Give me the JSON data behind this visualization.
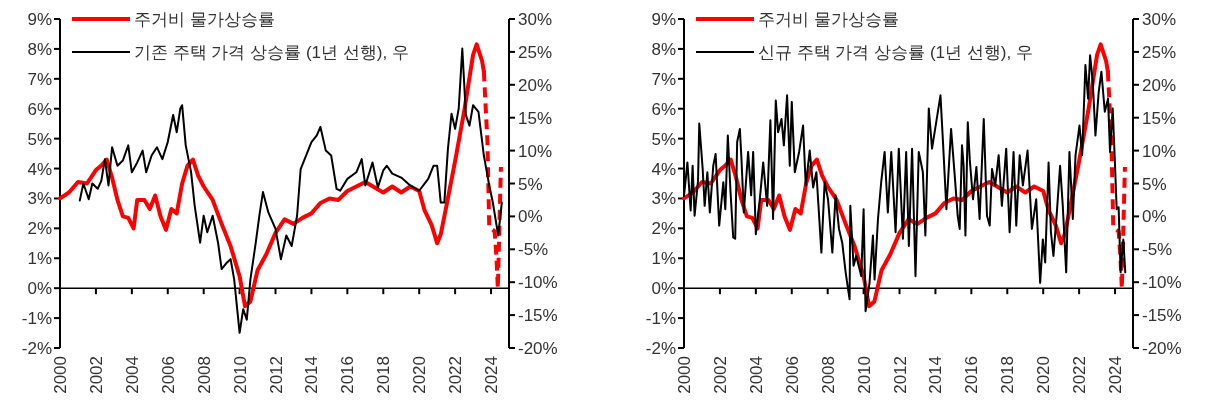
{
  "chart_data": [
    {
      "type": "line",
      "xlim": [
        2000,
        2025
      ],
      "xticks": [
        2000,
        2002,
        2004,
        2006,
        2008,
        2010,
        2012,
        2014,
        2016,
        2018,
        2020,
        2022,
        2024
      ],
      "ylim": [
        -2,
        9
      ],
      "yticks": [
        {
          "value": -2,
          "label": "-2%"
        },
        {
          "value": -1,
          "label": "-1%"
        },
        {
          "value": 0,
          "label": "0%"
        },
        {
          "value": 1,
          "label": "1%"
        },
        {
          "value": 2,
          "label": "2%"
        },
        {
          "value": 3,
          "label": "3%"
        },
        {
          "value": 4,
          "label": "4%"
        },
        {
          "value": 5,
          "label": "5%"
        },
        {
          "value": 6,
          "label": "6%"
        },
        {
          "value": 7,
          "label": "7%"
        },
        {
          "value": 8,
          "label": "8%"
        },
        {
          "value": 9,
          "label": "9%"
        }
      ],
      "y2lim": [
        -20,
        30
      ],
      "y2ticks": [
        {
          "value": -20,
          "label": "-20%"
        },
        {
          "value": -15,
          "label": "-15%"
        },
        {
          "value": -10,
          "label": "-10%"
        },
        {
          "value": -5,
          "label": "-5%"
        },
        {
          "value": 0,
          "label": "0%"
        },
        {
          "value": 5,
          "label": "5%"
        },
        {
          "value": 10,
          "label": "10%"
        },
        {
          "value": 15,
          "label": "15%"
        },
        {
          "value": 20,
          "label": "20%"
        },
        {
          "value": 25,
          "label": "25%"
        },
        {
          "value": 30,
          "label": "30%"
        }
      ],
      "legend": "top left",
      "series": [
        {
          "name": "주거비 물가상승률",
          "color": "#ff0000",
          "x": [
            2000.0,
            2000.5,
            2001.0,
            2001.5,
            2002.0,
            2002.3,
            2002.6,
            2002.9,
            2003.2,
            2003.5,
            2003.8,
            2004.1,
            2004.3,
            2004.7,
            2005.0,
            2005.3,
            2005.6,
            2005.9,
            2006.2,
            2006.5,
            2006.8,
            2007.1,
            2007.4,
            2007.7,
            2008.0,
            2008.5,
            2009.0,
            2009.5,
            2010.0,
            2010.3,
            2010.6,
            2011.0,
            2011.5,
            2012.0,
            2012.5,
            2013.0,
            2013.5,
            2014.0,
            2014.5,
            2015.0,
            2015.5,
            2016.0,
            2017.0,
            2018.0,
            2018.5,
            2019.0,
            2019.5,
            2020.0,
            2020.3,
            2020.7,
            2021.0,
            2021.2,
            2021.5,
            2022.0,
            2022.5,
            2023.0,
            2023.2,
            2023.5,
            2023.6
          ],
          "values": [
            3.0,
            3.2,
            3.55,
            3.5,
            3.95,
            4.1,
            4.3,
            3.7,
            2.95,
            2.4,
            2.35,
            2.0,
            2.95,
            2.95,
            2.65,
            3.1,
            2.4,
            1.95,
            2.65,
            2.5,
            3.5,
            4.1,
            4.3,
            3.75,
            3.4,
            2.95,
            2.15,
            1.4,
            0.4,
            -0.6,
            -0.45,
            0.6,
            1.15,
            1.85,
            2.3,
            2.15,
            2.35,
            2.5,
            2.85,
            3.0,
            2.95,
            3.25,
            3.55,
            3.2,
            3.4,
            3.2,
            3.4,
            3.25,
            2.6,
            2.1,
            1.5,
            1.8,
            2.7,
            4.25,
            5.9,
            7.8,
            8.15,
            7.6,
            7.25
          ]
        },
        {
          "color": "#ff0000",
          "line_style": "dashed",
          "x": [
            2023.6,
            2023.8,
            2023.9,
            2024.2,
            2024.3,
            2024.38,
            2024.55
          ],
          "values": [
            7.25,
            4.9,
            2.05,
            1.9,
            1.05,
            0.0,
            4.05
          ]
        },
        {
          "name": "기존 주택 가격 상승률 (1년 선행), 우",
          "color": "#000000",
          "axis": "y2",
          "x": [
            2001.1,
            2001.3,
            2001.6,
            2001.8,
            2002.1,
            2002.3,
            2002.5,
            2002.7,
            2002.9,
            2003.2,
            2003.5,
            2003.8,
            2004.0,
            2004.3,
            2004.6,
            2004.8,
            2005.1,
            2005.4,
            2005.7,
            2006.0,
            2006.3,
            2006.5,
            2006.7,
            2006.8,
            2007.0,
            2007.3,
            2007.5,
            2007.8,
            2008.0,
            2008.2,
            2008.5,
            2008.8,
            2009.0,
            2009.3,
            2009.5,
            2009.7,
            2010.0,
            2010.2,
            2010.4,
            2010.6,
            2010.9,
            2011.1,
            2011.3,
            2011.6,
            2012.0,
            2012.3,
            2012.6,
            2012.9,
            2013.2,
            2013.4,
            2013.7,
            2014.0,
            2014.3,
            2014.5,
            2014.8,
            2015.1,
            2015.4,
            2015.6,
            2016.0,
            2016.5,
            2016.8,
            2017.0,
            2017.4,
            2017.7,
            2018.0,
            2018.2,
            2018.5,
            2019.0,
            2019.5,
            2020.0,
            2020.5,
            2020.8,
            2021.0,
            2021.2,
            2021.4,
            2021.6,
            2021.8,
            2022.0,
            2022.2,
            2022.4,
            2022.6,
            2022.8,
            2023.0,
            2023.3,
            2023.6,
            2023.9,
            2024.1,
            2024.4,
            2024.6
          ],
          "values": [
            2.4,
            5.0,
            2.6,
            5.0,
            4.2,
            5.4,
            8.7,
            4.7,
            10.5,
            7.7,
            8.5,
            10.8,
            6.7,
            8.2,
            10.0,
            6.7,
            9.25,
            10.5,
            8.7,
            11.3,
            15.4,
            12.8,
            16.4,
            16.9,
            10.8,
            6.7,
            1.6,
            -4.0,
            0.1,
            -2.4,
            0.1,
            -4.0,
            -8.0,
            -7.0,
            -6.5,
            -9.6,
            -17.7,
            -14.1,
            -15.7,
            -9.6,
            -4.0,
            0.1,
            3.7,
            0.6,
            -1.9,
            -6.5,
            -2.9,
            -4.5,
            0.1,
            7.2,
            9.25,
            11.3,
            12.3,
            13.6,
            10.0,
            9.25,
            4.2,
            3.9,
            5.7,
            6.7,
            8.7,
            4.7,
            8.2,
            4.4,
            7.0,
            7.7,
            6.5,
            5.9,
            4.7,
            3.9,
            5.7,
            7.7,
            7.7,
            2.1,
            2.1,
            10.3,
            15.6,
            13.3,
            16.4,
            25.5,
            15.4,
            13.8,
            16.9,
            15.9,
            9.25,
            4.7,
            2.1,
            -2.9,
            2.1
          ]
        }
      ]
    },
    {
      "type": "line",
      "xlim": [
        2000,
        2025
      ],
      "xticks": [
        2000,
        2002,
        2004,
        2006,
        2008,
        2010,
        2012,
        2014,
        2016,
        2018,
        2020,
        2022,
        2024
      ],
      "ylim": [
        -2,
        9
      ],
      "yticks": [
        {
          "value": -2,
          "label": "-2%"
        },
        {
          "value": -1,
          "label": "-1%"
        },
        {
          "value": 0,
          "label": "0%"
        },
        {
          "value": 1,
          "label": "1%"
        },
        {
          "value": 2,
          "label": "2%"
        },
        {
          "value": 3,
          "label": "3%"
        },
        {
          "value": 4,
          "label": "4%"
        },
        {
          "value": 5,
          "label": "5%"
        },
        {
          "value": 6,
          "label": "6%"
        },
        {
          "value": 7,
          "label": "7%"
        },
        {
          "value": 8,
          "label": "8%"
        },
        {
          "value": 9,
          "label": "9%"
        }
      ],
      "y2lim": [
        -20,
        30
      ],
      "y2ticks": [
        {
          "value": -20,
          "label": "-20%"
        },
        {
          "value": -15,
          "label": "-15%"
        },
        {
          "value": -10,
          "label": "-10%"
        },
        {
          "value": -5,
          "label": "-5%"
        },
        {
          "value": 0,
          "label": "0%"
        },
        {
          "value": 5,
          "label": "5%"
        },
        {
          "value": 10,
          "label": "10%"
        },
        {
          "value": 15,
          "label": "15%"
        },
        {
          "value": 20,
          "label": "20%"
        },
        {
          "value": 25,
          "label": "25%"
        },
        {
          "value": 30,
          "label": "30%"
        }
      ],
      "legend": "top left",
      "series": [
        {
          "name": "주거비 물가상승률",
          "color": "#ff0000",
          "x": [
            2000.0,
            2000.5,
            2001.0,
            2001.5,
            2002.0,
            2002.3,
            2002.6,
            2002.9,
            2003.2,
            2003.5,
            2003.8,
            2004.1,
            2004.3,
            2004.7,
            2005.0,
            2005.3,
            2005.6,
            2005.9,
            2006.2,
            2006.5,
            2006.8,
            2007.1,
            2007.4,
            2007.7,
            2008.0,
            2008.5,
            2009.0,
            2009.5,
            2010.0,
            2010.3,
            2010.6,
            2011.0,
            2011.5,
            2012.0,
            2012.5,
            2013.0,
            2013.5,
            2014.0,
            2014.5,
            2015.0,
            2015.5,
            2016.0,
            2017.0,
            2018.0,
            2018.5,
            2019.0,
            2019.5,
            2020.0,
            2020.3,
            2020.7,
            2021.0,
            2021.2,
            2021.5,
            2022.0,
            2022.5,
            2023.0,
            2023.2,
            2023.5,
            2023.6
          ],
          "values": [
            3.0,
            3.2,
            3.55,
            3.5,
            3.95,
            4.1,
            4.3,
            3.7,
            2.95,
            2.4,
            2.35,
            2.0,
            2.95,
            2.95,
            2.65,
            3.1,
            2.4,
            1.95,
            2.65,
            2.5,
            3.5,
            4.1,
            4.3,
            3.75,
            3.4,
            2.95,
            2.15,
            1.4,
            0.4,
            -0.6,
            -0.45,
            0.6,
            1.15,
            1.85,
            2.3,
            2.15,
            2.35,
            2.5,
            2.85,
            3.0,
            2.95,
            3.25,
            3.55,
            3.2,
            3.4,
            3.2,
            3.4,
            3.25,
            2.6,
            2.1,
            1.5,
            1.8,
            2.7,
            4.25,
            5.9,
            7.8,
            8.15,
            7.6,
            7.25
          ]
        },
        {
          "color": "#ff0000",
          "line_style": "dashed",
          "x": [
            2023.6,
            2023.8,
            2023.9,
            2024.2,
            2024.3,
            2024.38,
            2024.55
          ],
          "values": [
            7.25,
            4.9,
            2.05,
            1.9,
            1.05,
            0.0,
            4.05
          ]
        },
        {
          "name": "신규 주택 가격 상승률 (1년 선행), 우",
          "color": "#000000",
          "axis": "y2",
          "x": [
            2000.0,
            2000.19,
            2000.37,
            2000.48,
            2000.59,
            2000.78,
            2000.85,
            2001.04,
            2001.15,
            2001.3,
            2001.44,
            2001.63,
            2001.76,
            2001.96,
            2002.19,
            2002.3,
            2002.44,
            2002.59,
            2002.74,
            2002.85,
            2002.96,
            2003.11,
            2003.2,
            2003.33,
            2003.57,
            2003.74,
            2003.85,
            2004.0,
            2004.22,
            2004.41,
            2004.63,
            2004.81,
            2004.96,
            2005.11,
            2005.24,
            2005.43,
            2005.56,
            2005.74,
            2005.89,
            2006.0,
            2006.17,
            2006.41,
            2006.63,
            2006.78,
            2007.0,
            2007.19,
            2007.37,
            2007.65,
            2007.83,
            2008.02,
            2008.26,
            2008.44,
            2008.63,
            2008.81,
            2009.0,
            2009.22,
            2009.26,
            2009.44,
            2009.59,
            2009.87,
            2010.0,
            2010.11,
            2010.33,
            2010.52,
            2010.61,
            2010.8,
            2010.98,
            2011.17,
            2011.35,
            2011.54,
            2011.78,
            2011.96,
            2012.19,
            2012.37,
            2012.52,
            2012.7,
            2012.89,
            2013.07,
            2013.3,
            2013.44,
            2013.63,
            2013.81,
            2014.28,
            2014.43,
            2014.61,
            2014.87,
            2015.06,
            2015.24,
            2015.35,
            2015.48,
            2015.57,
            2015.67,
            2015.8,
            2015.91,
            2016.09,
            2016.28,
            2016.46,
            2016.69,
            2016.87,
            2017.02,
            2017.15,
            2017.33,
            2017.52,
            2017.7,
            2017.94,
            2018.13,
            2018.35,
            2018.5,
            2018.69,
            2018.87,
            2019.13,
            2019.37,
            2019.61,
            2019.83,
            2019.98,
            2020.11,
            2020.3,
            2020.43,
            2020.57,
            2020.76,
            2020.94,
            2021.09,
            2021.28,
            2021.46,
            2021.65,
            2021.8,
            2022.02,
            2022.17,
            2022.35,
            2022.5,
            2022.61,
            2022.76,
            2022.91,
            2023.09,
            2023.24,
            2023.43,
            2023.61,
            2023.72,
            2023.87,
            2024.0,
            2024.09,
            2024.2,
            2024.31,
            2024.46,
            2024.57
          ],
          "values": [
            3.1,
            8.2,
            0.9,
            7.7,
            0.1,
            5.4,
            14.1,
            7.2,
            1.6,
            6.7,
            0.6,
            7.7,
            9.5,
            -1.4,
            5.2,
            1.1,
            12.3,
            3.7,
            -3.2,
            -3.4,
            11.3,
            13.3,
            8.7,
            0.6,
            9.8,
            3.2,
            9.8,
            -2.7,
            2.6,
            8.2,
            1.6,
            14.6,
            -0.4,
            17.6,
            12.8,
            14.8,
            10.8,
            18.4,
            7.7,
            17.4,
            6.7,
            9.8,
            13.8,
            4.7,
            10.0,
            4.4,
            6.7,
            -5.5,
            5.2,
            2.6,
            -5.5,
            3.2,
            -1.9,
            -4.0,
            -8.5,
            -12.6,
            1.6,
            -7.5,
            -6.0,
            -9.1,
            1.1,
            -14.4,
            -10.1,
            -2.9,
            -9.6,
            -0.4,
            5.2,
            9.8,
            0.6,
            9.8,
            -2.4,
            10.3,
            -3.4,
            9.8,
            -4.5,
            10.3,
            -9.1,
            9.8,
            6.7,
            -2.9,
            16.4,
            10.3,
            18.4,
            10.8,
            1.1,
            13.3,
            6.7,
            0.1,
            -1.9,
            10.8,
            7.7,
            -2.9,
            14.3,
            8.7,
            2.6,
            7.5,
            -0.4,
            14.8,
            0.1,
            -1.4,
            7.2,
            4.7,
            9.3,
            1.6,
            10.3,
            -2.4,
            9.8,
            -1.4,
            9.3,
            4.7,
            10.0,
            -1.9,
            2.6,
            -10.1,
            -3.5,
            -7.0,
            8.2,
            -2.4,
            -6.0,
            0.6,
            7.7,
            1.6,
            -8.5,
            9.8,
            -0.4,
            9.3,
            13.8,
            9.3,
            23.0,
            17.9,
            24.5,
            20.4,
            12.3,
            18.9,
            22.0,
            15.9,
            17.9,
            9.8,
            16.4,
            7.7,
            1.1,
            1.4,
            -8.5,
            -3.5,
            -8.5
          ]
        }
      ]
    }
  ]
}
